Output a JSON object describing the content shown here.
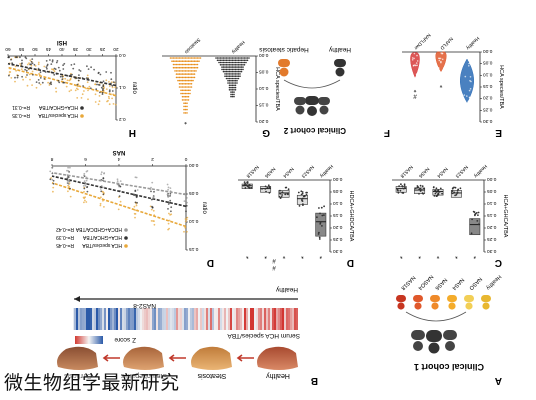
{
  "caption": "微生物组学最新研究",
  "panel_A": {
    "letter": "A",
    "title": "Clinical cohort 1",
    "groups": [
      "Healthy",
      "NASO",
      "NAS4",
      "NAS6",
      "NASO4",
      "NAS18"
    ],
    "group_colors": [
      "#e8b730",
      "#f2cf56",
      "#f4ac2b",
      "#ef8a2a",
      "#e0582b",
      "#c73621"
    ]
  },
  "panel_B": {
    "letter": "B",
    "stages": [
      "Healthy",
      "Steatosis",
      "Steatohepatitis",
      "Cirrhosis"
    ],
    "heatmap_label": "Serum HCA species/TBA",
    "zscore_label": "Z score",
    "axis_label": "Healthy",
    "axis_label_right": "NAS2-8"
  },
  "panel_C": {
    "letter": "C",
    "ylabel": "HCA+GHCA/TBA",
    "ticks": [
      "0.00",
      "0.05",
      "0.10",
      "0.15",
      "0.20",
      "0.25",
      "0.30"
    ],
    "categories": [
      "Healthy",
      "NAS23",
      "NAS4",
      "NAS6",
      "NAS18"
    ],
    "stars": [
      "*",
      "*",
      "*",
      "*",
      "*"
    ]
  },
  "panel_D": {
    "letter": "D",
    "ylabel": "HDCA+GHDCA/TBA",
    "ticks": [
      "0.00",
      "0.05",
      "0.10",
      "0.15",
      "0.20",
      "0.25",
      "0.30"
    ],
    "categories": [
      "Healthy",
      "NAS23",
      "NAS4",
      "NAS6",
      "NAS18"
    ],
    "stars": [
      "*",
      "*",
      "*",
      "*",
      "*"
    ],
    "hash_marks": [
      "#",
      "#"
    ]
  },
  "panel_E": {
    "letter": "E",
    "ylabel": "HCA species/TBA",
    "ticks": [
      "0.00",
      "0.05",
      "0.10",
      "0.15",
      "0.20",
      "0.25",
      "0.30"
    ],
    "categories": [
      "Healthy",
      "NAFLD",
      "NAFLDwr"
    ],
    "stars": [
      "*",
      "*"
    ],
    "hash_mark": "#"
  },
  "panel_F": {
    "letter": "F",
    "title": "Clinical cohort 2",
    "groups": [
      "Healthy",
      "Hepatic steatosis"
    ]
  },
  "panel_G": {
    "letter": "G",
    "ylabel": "HCA species/TBA",
    "ticks": [
      "0.00",
      "0.05",
      "0.10",
      "0.15",
      "0.20"
    ],
    "categories": [
      "Healthy",
      "Steatosis"
    ],
    "star": "*"
  },
  "panel_D_scatter": {
    "letter": "D",
    "xlabel": "NAS",
    "ylabel": "ratio",
    "xticks": [
      "0",
      "2",
      "4",
      "6",
      "8"
    ],
    "yticks": [
      "0.00",
      "0.05",
      "0.10",
      "0.15"
    ],
    "legend": [
      {
        "label": "HCA species/TBA",
        "r": "R=-0.45",
        "color": "#e8a83a"
      },
      {
        "label": "HCA+GHCA/TBA",
        "r": "R=-0.39",
        "color": "#333333"
      },
      {
        "label": "HDCA+GHDCA/TBA",
        "r": "R=-0.42",
        "color": "#9a9a9a"
      }
    ]
  },
  "panel_H": {
    "letter": "H",
    "xlabel": "HSI",
    "ylabel": "ratio",
    "xticks": [
      "20",
      "25",
      "30",
      "35",
      "40",
      "45",
      "50",
      "55",
      "60"
    ],
    "yticks": [
      "0.0",
      "0.1",
      "0.2"
    ],
    "legend": [
      {
        "label": "HCA species/TBA",
        "r": "R=-0.35",
        "color": "#e8a83a"
      },
      {
        "label": "HCA+GHCA/TBA",
        "r": "R=-0.31",
        "color": "#333333"
      }
    ]
  }
}
